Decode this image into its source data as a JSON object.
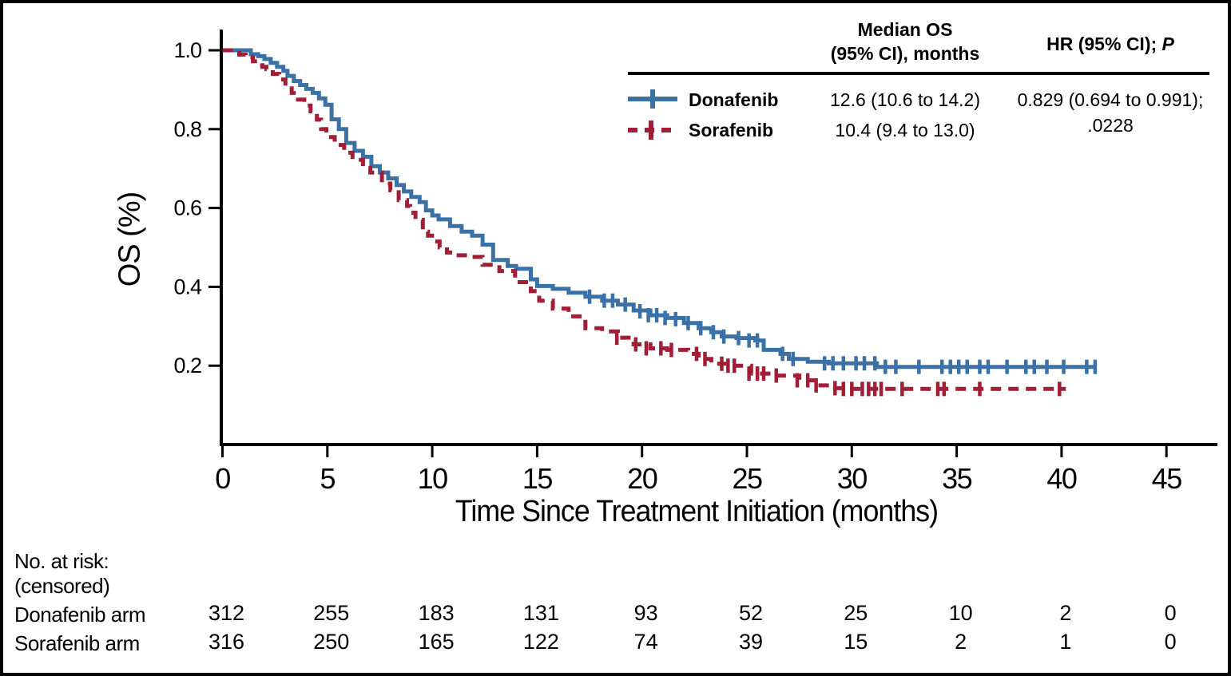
{
  "figure": {
    "background": "#ffffff",
    "border_color": "#000000"
  },
  "colors": {
    "donafenib": "#3A72A8",
    "sorafenib": "#A21E36",
    "axis": "#000000"
  },
  "legend": {
    "col_median_header_line1": "Median OS",
    "col_median_header_line2": "(95% CI), months",
    "col_hr_header_prefix": "HR (95% CI); ",
    "col_hr_header_p": "P",
    "rows": [
      {
        "label": "Donafenib",
        "median_os": "12.6 (10.6 to 14.2)"
      },
      {
        "label": "Sorafenib",
        "median_os": "10.4 (9.4 to 13.0)"
      }
    ],
    "hr_value_line1": "0.829 (0.694 to 0.991);",
    "hr_value_line2": ".0228"
  },
  "chart_data": {
    "type": "line",
    "subtype": "kaplan-meier-step",
    "title": "",
    "xlabel": "Time Since Treatment Initiation (months)",
    "ylabel": "OS (%)",
    "xlim": [
      0,
      47.5
    ],
    "ylim": [
      0,
      1.05
    ],
    "grid": false,
    "legend_position": "top-right-table",
    "xticks": [
      0,
      5,
      10,
      15,
      20,
      25,
      30,
      35,
      40,
      45
    ],
    "yticks": [
      1.0,
      0.8,
      0.6,
      0.4,
      0.2
    ],
    "ytick_labels": [
      "1.0",
      "0.8",
      "0.6",
      "0.4",
      "0.2"
    ],
    "series": [
      {
        "name": "Donafenib",
        "color": "#3A72A8",
        "line_style": "solid",
        "steps": [
          [
            0,
            1.0
          ],
          [
            1.2,
            1.0
          ],
          [
            1.35,
            0.99
          ],
          [
            1.7,
            0.985
          ],
          [
            2.0,
            0.978
          ],
          [
            2.3,
            0.968
          ],
          [
            2.6,
            0.958
          ],
          [
            2.9,
            0.948
          ],
          [
            3.1,
            0.935
          ],
          [
            3.4,
            0.922
          ],
          [
            3.7,
            0.912
          ],
          [
            4.0,
            0.902
          ],
          [
            4.3,
            0.892
          ],
          [
            4.6,
            0.878
          ],
          [
            4.9,
            0.862
          ],
          [
            5.2,
            0.825
          ],
          [
            5.55,
            0.8
          ],
          [
            5.9,
            0.765
          ],
          [
            6.3,
            0.745
          ],
          [
            6.7,
            0.73
          ],
          [
            7.1,
            0.706
          ],
          [
            7.5,
            0.69
          ],
          [
            7.9,
            0.675
          ],
          [
            8.3,
            0.658
          ],
          [
            8.65,
            0.642
          ],
          [
            9.0,
            0.628
          ],
          [
            9.4,
            0.615
          ],
          [
            9.7,
            0.594
          ],
          [
            10.0,
            0.581
          ],
          [
            10.3,
            0.571
          ],
          [
            10.85,
            0.554
          ],
          [
            11.4,
            0.54
          ],
          [
            11.9,
            0.53
          ],
          [
            12.4,
            0.507
          ],
          [
            12.9,
            0.468
          ],
          [
            13.6,
            0.453
          ],
          [
            14.0,
            0.446
          ],
          [
            14.7,
            0.419
          ],
          [
            15.0,
            0.402
          ],
          [
            15.75,
            0.395
          ],
          [
            16.5,
            0.385
          ],
          [
            17.3,
            0.375
          ],
          [
            18.1,
            0.365
          ],
          [
            18.85,
            0.355
          ],
          [
            19.6,
            0.34
          ],
          [
            20.4,
            0.328
          ],
          [
            21.2,
            0.321
          ],
          [
            22.0,
            0.308
          ],
          [
            22.7,
            0.295
          ],
          [
            23.3,
            0.285
          ],
          [
            23.8,
            0.274
          ],
          [
            24.5,
            0.27
          ],
          [
            25.4,
            0.264
          ],
          [
            25.8,
            0.24
          ],
          [
            26.6,
            0.23
          ],
          [
            27.0,
            0.217
          ],
          [
            27.9,
            0.21
          ],
          [
            28.9,
            0.206
          ],
          [
            31.2,
            0.197
          ],
          [
            41.6,
            0.197
          ]
        ],
        "censor_marks": [
          [
            17.5,
            0.375
          ],
          [
            18.2,
            0.365
          ],
          [
            18.6,
            0.365
          ],
          [
            19.2,
            0.355
          ],
          [
            19.9,
            0.338
          ],
          [
            20.3,
            0.328
          ],
          [
            20.7,
            0.328
          ],
          [
            21.1,
            0.321
          ],
          [
            21.6,
            0.318
          ],
          [
            22.2,
            0.308
          ],
          [
            22.8,
            0.295
          ],
          [
            23.4,
            0.285
          ],
          [
            23.9,
            0.274
          ],
          [
            24.6,
            0.27
          ],
          [
            25.1,
            0.264
          ],
          [
            25.5,
            0.264
          ],
          [
            26.7,
            0.23
          ],
          [
            27.2,
            0.217
          ],
          [
            28.7,
            0.206
          ],
          [
            29.1,
            0.206
          ],
          [
            29.6,
            0.206
          ],
          [
            30.2,
            0.206
          ],
          [
            30.6,
            0.206
          ],
          [
            31.1,
            0.206
          ],
          [
            31.6,
            0.197
          ],
          [
            32.1,
            0.197
          ],
          [
            33.2,
            0.197
          ],
          [
            34.3,
            0.197
          ],
          [
            34.7,
            0.197
          ],
          [
            35.1,
            0.197
          ],
          [
            35.5,
            0.197
          ],
          [
            36.1,
            0.197
          ],
          [
            36.5,
            0.197
          ],
          [
            37.4,
            0.197
          ],
          [
            38.3,
            0.197
          ],
          [
            38.7,
            0.197
          ],
          [
            39.3,
            0.197
          ],
          [
            40.1,
            0.197
          ],
          [
            41.2,
            0.197
          ],
          [
            41.6,
            0.197
          ]
        ]
      },
      {
        "name": "Sorafenib",
        "color": "#A21E36",
        "line_style": "dashed",
        "steps": [
          [
            0,
            1.0
          ],
          [
            0.7,
            1.0
          ],
          [
            0.8,
            0.989
          ],
          [
            1.1,
            0.982
          ],
          [
            1.45,
            0.972
          ],
          [
            1.65,
            0.962
          ],
          [
            1.9,
            0.958
          ],
          [
            2.1,
            0.952
          ],
          [
            2.4,
            0.94
          ],
          [
            2.7,
            0.926
          ],
          [
            3.0,
            0.91
          ],
          [
            3.3,
            0.892
          ],
          [
            3.6,
            0.875
          ],
          [
            3.9,
            0.86
          ],
          [
            4.2,
            0.845
          ],
          [
            4.5,
            0.824
          ],
          [
            4.7,
            0.8
          ],
          [
            4.95,
            0.78
          ],
          [
            5.35,
            0.76
          ],
          [
            5.8,
            0.74
          ],
          [
            6.2,
            0.722
          ],
          [
            6.7,
            0.702
          ],
          [
            7.05,
            0.69
          ],
          [
            7.6,
            0.662
          ],
          [
            8.0,
            0.645
          ],
          [
            8.4,
            0.62
          ],
          [
            8.8,
            0.605
          ],
          [
            8.95,
            0.588
          ],
          [
            9.2,
            0.57
          ],
          [
            9.55,
            0.54
          ],
          [
            9.8,
            0.53
          ],
          [
            10.1,
            0.515
          ],
          [
            10.35,
            0.5
          ],
          [
            10.7,
            0.487
          ],
          [
            11.0,
            0.48
          ],
          [
            11.7,
            0.476
          ],
          [
            12.4,
            0.456
          ],
          [
            13.2,
            0.44
          ],
          [
            13.95,
            0.412
          ],
          [
            14.7,
            0.389
          ],
          [
            15.1,
            0.365
          ],
          [
            15.75,
            0.345
          ],
          [
            16.5,
            0.325
          ],
          [
            17.3,
            0.295
          ],
          [
            18.1,
            0.287
          ],
          [
            18.85,
            0.271
          ],
          [
            19.6,
            0.254
          ],
          [
            20.4,
            0.244
          ],
          [
            21.2,
            0.24
          ],
          [
            22.2,
            0.23
          ],
          [
            22.7,
            0.217
          ],
          [
            23.3,
            0.205
          ],
          [
            24.0,
            0.2
          ],
          [
            25.2,
            0.18
          ],
          [
            26.3,
            0.175
          ],
          [
            27.5,
            0.163
          ],
          [
            28.4,
            0.15
          ],
          [
            29.2,
            0.143
          ],
          [
            29.7,
            0.141
          ],
          [
            40.2,
            0.141
          ]
        ],
        "censor_marks": [
          [
            18.8,
            0.271
          ],
          [
            19.7,
            0.254
          ],
          [
            20.2,
            0.244
          ],
          [
            20.9,
            0.244
          ],
          [
            21.4,
            0.24
          ],
          [
            22.6,
            0.23
          ],
          [
            23.0,
            0.217
          ],
          [
            23.8,
            0.205
          ],
          [
            24.1,
            0.2
          ],
          [
            24.4,
            0.2
          ],
          [
            25.1,
            0.18
          ],
          [
            25.5,
            0.18
          ],
          [
            25.8,
            0.18
          ],
          [
            26.4,
            0.175
          ],
          [
            27.4,
            0.163
          ],
          [
            27.9,
            0.163
          ],
          [
            28.3,
            0.15
          ],
          [
            29.2,
            0.143
          ],
          [
            29.6,
            0.141
          ],
          [
            30.0,
            0.141
          ],
          [
            30.5,
            0.141
          ],
          [
            30.8,
            0.141
          ],
          [
            31.1,
            0.141
          ],
          [
            31.4,
            0.141
          ],
          [
            32.4,
            0.141
          ],
          [
            34.1,
            0.141
          ],
          [
            34.4,
            0.141
          ],
          [
            36.1,
            0.141
          ],
          [
            39.9,
            0.141
          ]
        ]
      }
    ]
  },
  "risk_table": {
    "title_line1": "No. at risk:",
    "title_line2": "(censored)",
    "time_points": [
      0,
      5,
      10,
      15,
      20,
      25,
      30,
      35,
      40,
      45
    ],
    "rows": [
      {
        "label": "Donafenib arm",
        "counts": [
          312,
          255,
          183,
          131,
          93,
          52,
          25,
          10,
          2,
          0
        ]
      },
      {
        "label": "Sorafenib arm",
        "counts": [
          316,
          250,
          165,
          122,
          74,
          39,
          15,
          2,
          1,
          0
        ]
      }
    ]
  }
}
